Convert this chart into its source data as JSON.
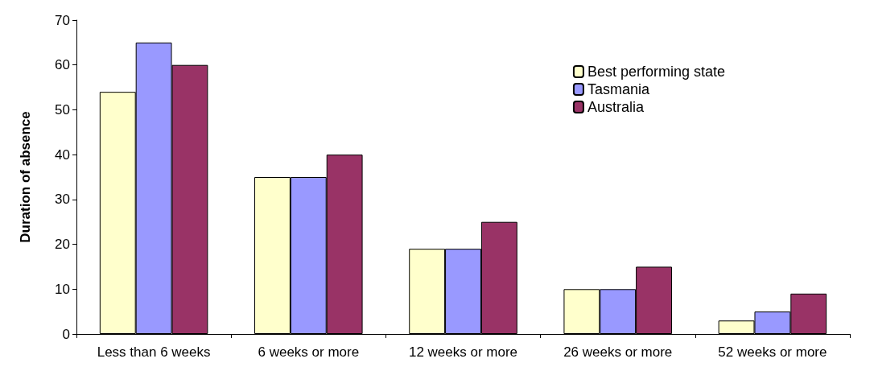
{
  "chart_data": {
    "type": "bar",
    "ylabel": "Duration of absence",
    "categories": [
      "Less than 6 weeks",
      "6 weeks or more",
      "12 weeks or more",
      "26 weeks or more",
      "52 weeks or more"
    ],
    "series": [
      {
        "name": "Best performing state",
        "color": "#ffffcc",
        "values": [
          54,
          35,
          19,
          10,
          3
        ]
      },
      {
        "name": "Tasmania",
        "color": "#9999ff",
        "values": [
          65,
          35,
          19,
          10,
          5
        ]
      },
      {
        "name": "Australia",
        "color": "#993366",
        "values": [
          60,
          40,
          25,
          15,
          9
        ]
      }
    ],
    "ylim": [
      0,
      70
    ],
    "yticks": [
      0,
      10,
      20,
      30,
      40,
      50,
      60,
      70
    ],
    "grid": false,
    "legend": "top right"
  }
}
